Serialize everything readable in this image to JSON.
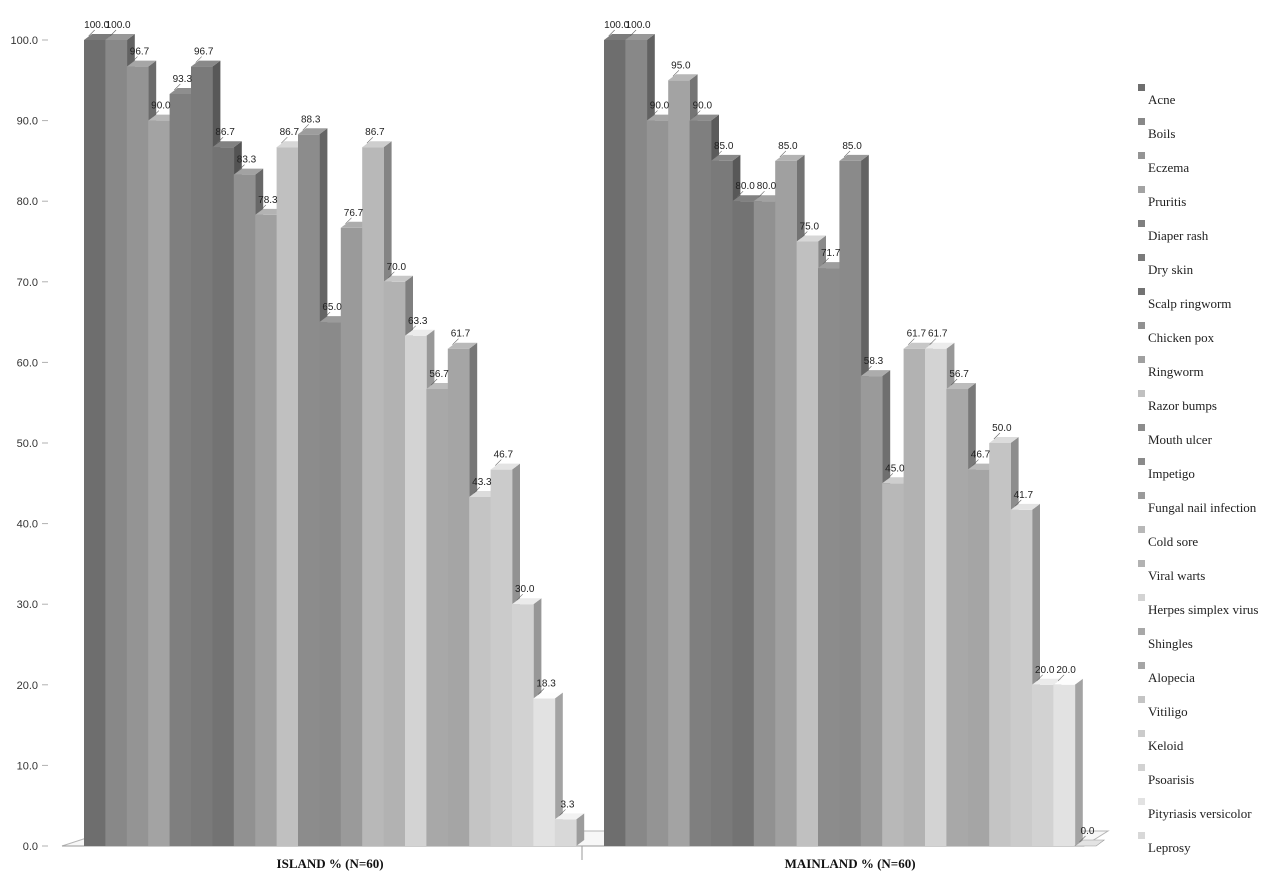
{
  "chart_data": {
    "type": "bar",
    "categories": [
      "ISLAND % (N=60)",
      "MAINLAND % (N=60)"
    ],
    "ylim": [
      0,
      100
    ],
    "yticks": [
      "0.0",
      "10.0",
      "20.0",
      "30.0",
      "40.0",
      "50.0",
      "60.0",
      "70.0",
      "80.0",
      "90.0",
      "100.0"
    ],
    "series": [
      {
        "name": "Acne",
        "color": "#6e6e6e",
        "values": [
          100.0,
          100.0
        ],
        "labels": [
          "100.0",
          "100.0"
        ]
      },
      {
        "name": "Boils",
        "color": "#888888",
        "values": [
          100.0,
          100.0
        ],
        "labels": [
          "100.0",
          "100.0"
        ]
      },
      {
        "name": "Eczema",
        "color": "#949494",
        "values": [
          96.7,
          90.0
        ],
        "labels": [
          "96.7",
          "90.0"
        ]
      },
      {
        "name": "Pruritis",
        "color": "#a3a3a3",
        "values": [
          90.0,
          95.0
        ],
        "labels": [
          "90.0",
          "95.0"
        ]
      },
      {
        "name": "Diaper rash",
        "color": "#7f7f7f",
        "values": [
          93.3,
          90.0
        ],
        "labels": [
          "93.3",
          "90.0"
        ]
      },
      {
        "name": "Dry skin",
        "color": "#7a7a7a",
        "values": [
          96.7,
          85.0
        ],
        "labels": [
          "96.7",
          "85.0"
        ]
      },
      {
        "name": "Scalp ringworm",
        "color": "#737373",
        "values": [
          86.7,
          80.0
        ],
        "labels": [
          "86.7",
          "80.0"
        ]
      },
      {
        "name": "Chicken pox",
        "color": "#919191",
        "values": [
          83.3,
          80.0
        ],
        "labels": [
          "83.3",
          "80.0"
        ]
      },
      {
        "name": "Ringworm",
        "color": "#a0a0a0",
        "values": [
          78.3,
          85.0
        ],
        "labels": [
          "78.3",
          "85.0"
        ]
      },
      {
        "name": "Razor bumps",
        "color": "#c0c0c0",
        "values": [
          86.7,
          75.0
        ],
        "labels": [
          "86.7",
          "75.0"
        ]
      },
      {
        "name": "Mouth ulcer",
        "color": "#8c8c8c",
        "values": [
          88.3,
          71.7
        ],
        "labels": [
          "88.3",
          "71.7"
        ]
      },
      {
        "name": "Impetigo",
        "color": "#8a8a8a",
        "values": [
          65.0,
          85.0
        ],
        "labels": [
          "65.0",
          "85.0"
        ]
      },
      {
        "name": "Fungal nail infection",
        "color": "#9a9a9a",
        "values": [
          76.7,
          58.3
        ],
        "labels": [
          "76.7",
          "58.3"
        ]
      },
      {
        "name": "Cold sore",
        "color": "#b8b8b8",
        "values": [
          86.7,
          45.0
        ],
        "labels": [
          "86.7",
          "45.0"
        ]
      },
      {
        "name": "Viral warts",
        "color": "#b2b2b2",
        "values": [
          70.0,
          61.7
        ],
        "labels": [
          "70.0",
          "61.7"
        ]
      },
      {
        "name": "Herpes simplex virus",
        "color": "#d3d3d3",
        "values": [
          63.3,
          61.7
        ],
        "labels": [
          "63.3",
          "61.7"
        ]
      },
      {
        "name": "Shingles",
        "color": "#a8a8a8",
        "values": [
          56.7,
          56.7
        ],
        "labels": [
          "56.7",
          "56.7"
        ]
      },
      {
        "name": "Alopecia",
        "color": "#a5a5a5",
        "values": [
          61.7,
          46.7
        ],
        "labels": [
          "61.7",
          "46.7"
        ]
      },
      {
        "name": "Vitiligo",
        "color": "#c4c4c4",
        "values": [
          43.3,
          50.0
        ],
        "labels": [
          "43.3",
          "50.0"
        ]
      },
      {
        "name": "Keloid",
        "color": "#cbcbcb",
        "values": [
          46.7,
          41.7
        ],
        "labels": [
          "46.7",
          "41.7"
        ]
      },
      {
        "name": "Psoarisis",
        "color": "#d2d2d2",
        "values": [
          30.0,
          20.0
        ],
        "labels": [
          "30.0",
          "20.0"
        ]
      },
      {
        "name": "Pityriasis versicolor",
        "color": "#e2e2e2",
        "values": [
          18.3,
          20.0
        ],
        "labels": [
          "18.3",
          "20.0"
        ]
      },
      {
        "name": "Leprosy",
        "color": "#d8d8d8",
        "values": [
          3.3,
          0.0
        ],
        "labels": [
          "3.3",
          "0.0"
        ]
      }
    ],
    "title": "",
    "xlabel": "",
    "ylabel": "",
    "legend_position": "right",
    "grid": false
  }
}
